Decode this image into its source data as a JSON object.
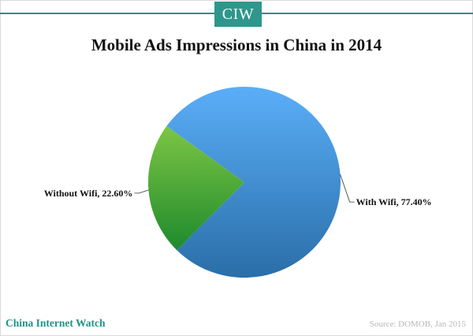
{
  "logo_text": "CIW",
  "brand": "China Internet Watch",
  "source": "Source: DOMOB, Jan 2015",
  "chart_data": {
    "type": "pie",
    "title": "Mobile Ads Impressions in China in 2014",
    "slices": [
      {
        "label": "With Wifi, 77.40%",
        "category": "With Wifi",
        "value": 77.4,
        "color": "#3f91d8"
      },
      {
        "label": "Without Wifi, 22.60%",
        "category": "Without Wifi",
        "value": 22.6,
        "color": "#4ea83a"
      }
    ],
    "legend": "none"
  }
}
